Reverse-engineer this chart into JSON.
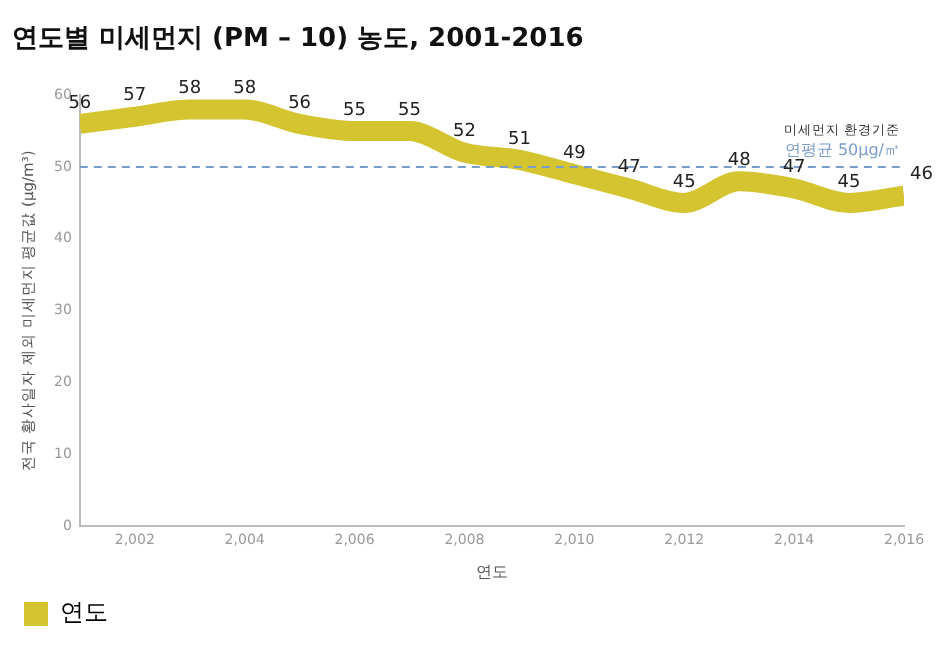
{
  "chart_data": {
    "type": "line",
    "title": "연도별 미세먼지 (PM – 10) 농도, 2001-2016",
    "xlabel": "연도",
    "ylabel": "전국 황사일자 제외 미세먼지 평균값 (μg/m³)",
    "x": [
      2001,
      2002,
      2003,
      2004,
      2005,
      2006,
      2007,
      2008,
      2009,
      2010,
      2011,
      2012,
      2013,
      2014,
      2015,
      2016
    ],
    "series": [
      {
        "name": "연도",
        "color": "#d4c430",
        "values": [
          56,
          57,
          58,
          58,
          56,
          55,
          55,
          52,
          51,
          49,
          47,
          45,
          48,
          47,
          45,
          46
        ]
      }
    ],
    "xlim": [
      2001,
      2016
    ],
    "xticks": [
      {
        "value": 2002,
        "label": "2,002"
      },
      {
        "value": 2004,
        "label": "2,004"
      },
      {
        "value": 2006,
        "label": "2,006"
      },
      {
        "value": 2008,
        "label": "2,008"
      },
      {
        "value": 2010,
        "label": "2,010"
      },
      {
        "value": 2012,
        "label": "2,012"
      },
      {
        "value": 2014,
        "label": "2,014"
      },
      {
        "value": 2016,
        "label": "2,016"
      }
    ],
    "ylim": [
      0,
      60
    ],
    "yticks": [
      0,
      10,
      20,
      30,
      40,
      50,
      60
    ],
    "ref_lines": [
      {
        "axis": "y",
        "value": 50,
        "label": "연평균 50μg/㎥",
        "color": "#7a9cc8",
        "line_style": "dashed"
      }
    ],
    "annotations": [
      "미세먼지 환경기준"
    ],
    "data_labels": true,
    "grid": false,
    "legend": "bottom",
    "marker": "none",
    "line_style": "solid"
  }
}
